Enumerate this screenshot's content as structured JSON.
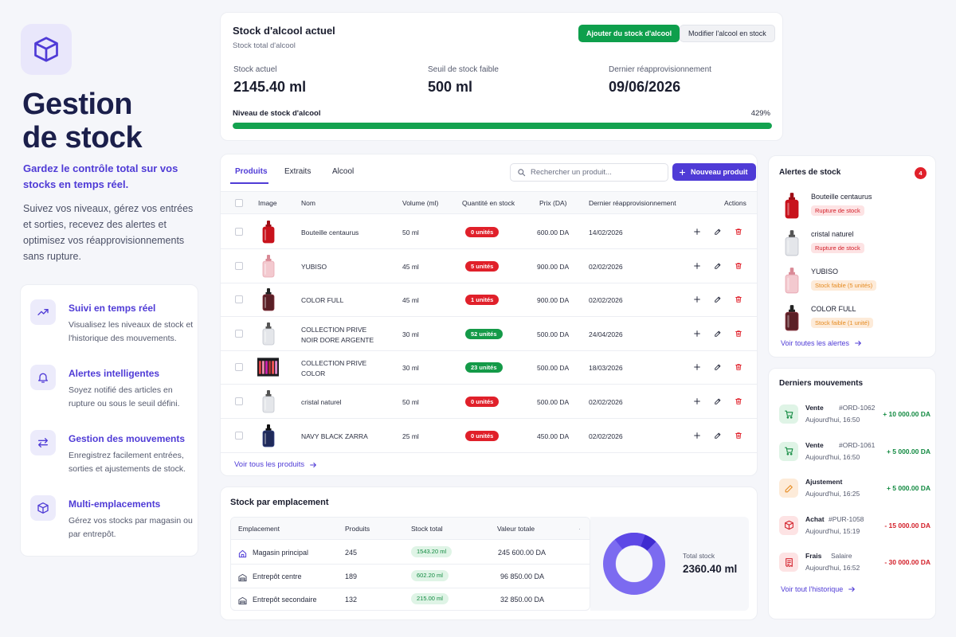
{
  "hero": {
    "title_line1": "Gestion",
    "title_line2": "de stock",
    "tagline": "Gardez le contrôle total sur vos stocks en temps réel.",
    "description": "Suivez vos niveaux, gérez vos entrées et sorties, recevez des alertes et optimisez vos réapprovisionnements sans rupture."
  },
  "features": [
    {
      "title": "Suivi en temps réel",
      "desc": "Visualisez les niveaux de stock et l'historique des mouvements.",
      "icon": "trend-up-icon"
    },
    {
      "title": "Alertes intelligentes",
      "desc": "Soyez notifié des articles en rupture ou sous le seuil défini.",
      "icon": "bell-icon"
    },
    {
      "title": "Gestion des mouvements",
      "desc": "Enregistrez facilement entrées, sorties et ajustements de stock.",
      "icon": "arrows-swap-icon"
    },
    {
      "title": "Multi-emplacements",
      "desc": "Gérez vos stocks par magasin ou par entrepôt.",
      "icon": "box-icon"
    }
  ],
  "alcohol": {
    "title": "Stock d'alcool actuel",
    "subtitle": "Stock total d'alcool",
    "add_btn": "Ajouter du stock d'alcool",
    "edit_btn": "Modifier l'alcool en stock",
    "current_label": "Stock actuel",
    "current_value": "2145.40 ml",
    "threshold_label": "Seuil de stock faible",
    "threshold_value": "500 ml",
    "restock_label": "Dernier réapprovisionnement",
    "restock_value": "09/06/2026",
    "level_label": "Niveau de stock d'alcool",
    "level_pct": "429%",
    "level_fill": 1.0
  },
  "products": {
    "tabs": [
      "Produits",
      "Extraits",
      "Alcool"
    ],
    "search_placeholder": "Rechercher un produit...",
    "new_btn": "Nouveau produit",
    "columns": {
      "image": "Image",
      "name": "Nom",
      "volume": "Volume (ml)",
      "qty": "Quantité en stock",
      "price": "Prix (DA)",
      "restock": "Dernier réapprovisionnement",
      "actions": "Actions"
    },
    "rows": [
      {
        "name": "Bouteille centaurus",
        "name2": "",
        "volume": "50 ml",
        "qty": "0 unités",
        "status": "red",
        "price": "600.00 DA",
        "date": "14/02/2026",
        "img": "red"
      },
      {
        "name": "YUBISO",
        "name2": "",
        "volume": "45 ml",
        "qty": "5 unités",
        "status": "red",
        "price": "900.00 DA",
        "date": "02/02/2026",
        "img": "pink"
      },
      {
        "name": "COLOR FULL",
        "name2": "",
        "volume": "45 ml",
        "qty": "1 unités",
        "status": "red",
        "price": "900.00 DA",
        "date": "02/02/2026",
        "img": "dark"
      },
      {
        "name": "COLLECTION PRIVE",
        "name2": "NOIR DORE ARGENTE",
        "volume": "30 ml",
        "qty": "52 unités",
        "status": "green",
        "price": "500.00 DA",
        "date": "24/04/2026",
        "img": "clear"
      },
      {
        "name": "COLLECTION PRIVE",
        "name2": "COLOR",
        "volume": "30 ml",
        "qty": "23 unités",
        "status": "green",
        "price": "500.00 DA",
        "date": "18/03/2026",
        "img": "set"
      },
      {
        "name": "cristal naturel",
        "name2": "",
        "volume": "50 ml",
        "qty": "0 unités",
        "status": "red",
        "price": "500.00 DA",
        "date": "02/02/2026",
        "img": "clear"
      },
      {
        "name": "NAVY BLACK ZARRA",
        "name2": "",
        "volume": "25 ml",
        "qty": "0 unités",
        "status": "red",
        "price": "450.00 DA",
        "date": "02/02/2026",
        "img": "navy"
      }
    ],
    "see_all": "Voir tous les produits"
  },
  "locations": {
    "title": "Stock par emplacement",
    "columns": [
      "Emplacement",
      "Produits",
      "Stock total",
      "Valeur totale"
    ],
    "rows": [
      {
        "name": "Magasin principal",
        "products": "245",
        "stock": "1543.20 ml",
        "value": "245 600.00 DA",
        "icon": "home-icon"
      },
      {
        "name": "Entrepôt centre",
        "products": "189",
        "stock": "602.20 ml",
        "value": "96 850.00 DA",
        "icon": "warehouse-icon"
      },
      {
        "name": "Entrepôt secondaire",
        "products": "132",
        "stock": "215.00 ml",
        "value": "32 850.00 DA",
        "icon": "warehouse-icon"
      }
    ],
    "total_label": "Total stock",
    "total_value": "2360.40 ml"
  },
  "alerts": {
    "title": "Alertes de stock",
    "count": "4",
    "items": [
      {
        "name": "Bouteille centaurus",
        "badge": "Rupture de stock",
        "type": "red",
        "img": "red"
      },
      {
        "name": "cristal naturel",
        "badge": "Rupture de stock",
        "type": "red",
        "img": "clear"
      },
      {
        "name": "YUBISO",
        "badge": "Stock faible (5 unités)",
        "type": "orange",
        "img": "pink"
      },
      {
        "name": "COLOR FULL",
        "badge": "Stock faible (1 unité)",
        "type": "orange",
        "img": "dark"
      }
    ],
    "link": "Voir toutes les alertes"
  },
  "movements": {
    "title": "Derniers mouvements",
    "items": [
      {
        "type": "Vente",
        "ref": "#ORD-1062",
        "date": "Aujourd'hui, 16:50",
        "amount": "+ 10 000.00 DA",
        "kind": "pos",
        "icon": "cart-icon"
      },
      {
        "type": "Vente",
        "ref": "#ORD-1061",
        "date": "Aujourd'hui, 16:50",
        "amount": "+ 5 000.00 DA",
        "kind": "pos",
        "icon": "cart-icon"
      },
      {
        "type": "Ajustement",
        "ref": "",
        "date": "Aujourd'hui, 16:25",
        "amount": "+ 5 000.00 DA",
        "kind": "pos",
        "icon": "pencil-icon"
      },
      {
        "type": "Achat",
        "ref": "#PUR-1058",
        "date": "Aujourd'hui, 15:19",
        "amount": "- 15 000.00 DA",
        "kind": "neg",
        "icon": "box-icon"
      },
      {
        "type": "Frais",
        "ref": "Salaire",
        "date": "Aujourd'hui, 16:52",
        "amount": "- 30 000.00 DA",
        "kind": "neg",
        "icon": "receipt-icon"
      }
    ],
    "link": "Voir tout l'historique"
  },
  "colors": {
    "accent": "#4f3bd6",
    "green": "#13a24f",
    "red": "#e0202a"
  }
}
